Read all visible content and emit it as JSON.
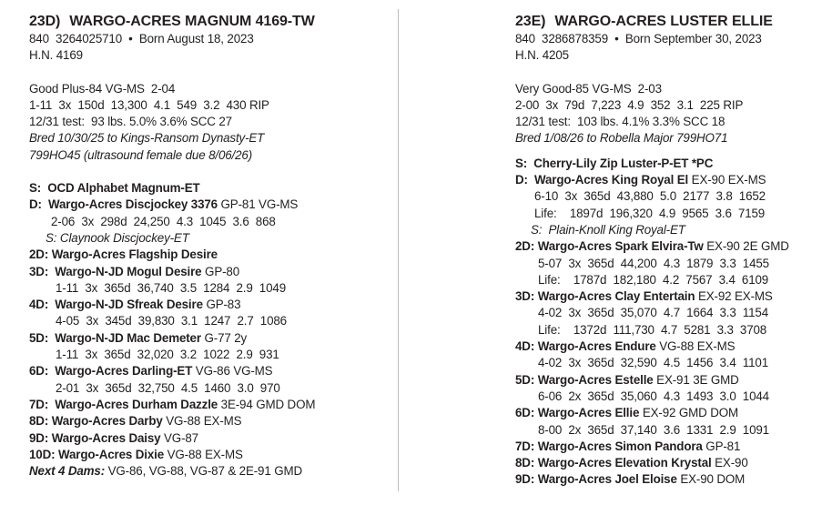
{
  "animals": [
    {
      "lot": "23D)",
      "name": "WARGO-ACRES MAGNUM 4169-TW",
      "id_line": "840  3264025710  •  Born August 18, 2023",
      "hn": "H.N. 4169",
      "record": [
        [
          {
            "t": "Good Plus-84 VG-MS  2-04"
          }
        ],
        [
          {
            "t": "1-11  3x  150d  13,300  4.1  549  3.2  430 RIP"
          }
        ],
        [
          {
            "t": "12/31 test:  93 lbs. 5.0% 3.6% SCC 27"
          }
        ],
        [
          {
            "t": "Bred 10/30/25 to Kings-Ransom Dynasty-ET",
            "s": "i"
          }
        ],
        [
          {
            "t": "799HO45 (ultrasound female due 8/06/26)",
            "s": "i"
          }
        ]
      ],
      "pedigree": [
        {
          "k": "",
          "p": [
            {
              "t": "S:  OCD Alphabet Magnum-ET",
              "s": "b"
            }
          ]
        },
        {
          "k": "",
          "p": [
            {
              "t": "D:  Wargo-Acres Discjockey 3376",
              "s": "b"
            },
            {
              "t": " GP-81 VG-MS"
            }
          ]
        },
        {
          "k": "stat",
          "p": [
            {
              "t": "2-06  3x  298d  24,250  4.3  1045  3.6  868"
            }
          ]
        },
        {
          "k": "sire",
          "p": [
            {
              "t": "S: Claynook Discjockey-ET",
              "s": "i"
            }
          ]
        },
        {
          "k": "",
          "p": [
            {
              "t": "2D: Wargo-Acres Flagship Desire",
              "s": "b"
            }
          ]
        },
        {
          "k": "",
          "p": [
            {
              "t": "3D:  Wargo-N-JD Mogul Desire",
              "s": "b"
            },
            {
              "t": " GP-80"
            }
          ]
        },
        {
          "k": "stat2",
          "p": [
            {
              "t": "1-11  3x  365d  36,740  3.5  1284  2.9  1049"
            }
          ]
        },
        {
          "k": "",
          "p": [
            {
              "t": "4D:  Wargo-N-JD Sfreak Desire",
              "s": "b"
            },
            {
              "t": " GP-83"
            }
          ]
        },
        {
          "k": "stat2",
          "p": [
            {
              "t": "4-05  3x  345d  39,830  3.1  1247  2.7  1086"
            }
          ]
        },
        {
          "k": "",
          "p": [
            {
              "t": "5D:  Wargo-N-JD Mac Demeter",
              "s": "b"
            },
            {
              "t": " G-77 2y"
            }
          ]
        },
        {
          "k": "stat2",
          "p": [
            {
              "t": "1-11  3x  365d  32,020  3.2  1022  2.9  931"
            }
          ]
        },
        {
          "k": "",
          "p": [
            {
              "t": "6D:  Wargo-Acres Darling-ET",
              "s": "b"
            },
            {
              "t": " VG-86 VG-MS"
            }
          ]
        },
        {
          "k": "stat2",
          "p": [
            {
              "t": "2-01  3x  365d  32,750  4.5  1460  3.0  970"
            }
          ]
        },
        {
          "k": "",
          "p": [
            {
              "t": "7D:  Wargo-Acres Durham Dazzle",
              "s": "b"
            },
            {
              "t": " 3E-94 GMD DOM"
            }
          ]
        },
        {
          "k": "",
          "p": [
            {
              "t": "8D: Wargo-Acres Darby",
              "s": "b"
            },
            {
              "t": " VG-88 EX-MS"
            }
          ]
        },
        {
          "k": "",
          "p": [
            {
              "t": "9D: Wargo-Acres Daisy",
              "s": "b"
            },
            {
              "t": " VG-87"
            }
          ]
        },
        {
          "k": "",
          "p": [
            {
              "t": "10D: Wargo-Acres Dixie",
              "s": "b"
            },
            {
              "t": " VG-88 EX-MS"
            }
          ]
        },
        {
          "k": "",
          "p": [
            {
              "t": "Next 4 Dams:",
              "s": "b i"
            },
            {
              "t": " VG-86, VG-88, VG-87 & 2E-91 GMD"
            }
          ]
        }
      ]
    },
    {
      "lot": "23E)",
      "name": "WARGO-ACRES LUSTER ELLIE",
      "id_line": "840  3286878359  •  Born September 30, 2023",
      "hn": "H.N. 4205",
      "record": [
        [
          {
            "t": "Very Good-85 VG-MS  2-03"
          }
        ],
        [
          {
            "t": "2-00  3x  79d  7,223  4.9  352  3.1  225 RIP"
          }
        ],
        [
          {
            "t": "12/31 test:  103 lbs. 4.1% 3.3% SCC 18"
          }
        ],
        [
          {
            "t": "Bred 1/08/26 to Robella Major 799HO71",
            "s": "i"
          }
        ]
      ],
      "pedigree": [
        {
          "k": "",
          "p": [
            {
              "t": "S:  Cherry-Lily Zip Luster-P-ET *PC",
              "s": "b"
            }
          ]
        },
        {
          "k": "",
          "p": [
            {
              "t": "D:  Wargo-Acres King Royal El",
              "s": "b"
            },
            {
              "t": " EX-90 EX-MS"
            }
          ]
        },
        {
          "k": "stat",
          "p": [
            {
              "t": "6-10  3x  365d  43,880  5.0  2177  3.8  1652"
            }
          ]
        },
        {
          "k": "stat",
          "p": [
            {
              "t": "Life:    1897d  196,320  4.9  9565  3.6  7159"
            }
          ]
        },
        {
          "k": "sire",
          "p": [
            {
              "t": "S:  Plain-Knoll King Royal-ET",
              "s": "i"
            }
          ]
        },
        {
          "k": "",
          "p": [
            {
              "t": "2D: Wargo-Acres Spark Elvira-Tw",
              "s": "b"
            },
            {
              "t": " EX-90 2E GMD"
            }
          ]
        },
        {
          "k": "stat2",
          "p": [
            {
              "t": "5-07  3x  365d  44,200  4.3  1879  3.3  1455"
            }
          ]
        },
        {
          "k": "stat2",
          "p": [
            {
              "t": "Life:    1787d  182,180  4.2  7567  3.4  6109"
            }
          ]
        },
        {
          "k": "",
          "p": [
            {
              "t": "3D: Wargo-Acres Clay Entertain",
              "s": "b"
            },
            {
              "t": " EX-92 EX-MS"
            }
          ]
        },
        {
          "k": "stat2",
          "p": [
            {
              "t": "4-02  3x  365d  35,070  4.7  1664  3.3  1154"
            }
          ]
        },
        {
          "k": "stat2",
          "p": [
            {
              "t": "Life:    1372d  111,730  4.7  5281  3.3  3708"
            }
          ]
        },
        {
          "k": "",
          "p": [
            {
              "t": "4D: Wargo-Acres Endure",
              "s": "b"
            },
            {
              "t": " VG-88 EX-MS"
            }
          ]
        },
        {
          "k": "stat2",
          "p": [
            {
              "t": "4-02  3x  365d  32,590  4.5  1456  3.4  1101"
            }
          ]
        },
        {
          "k": "",
          "p": [
            {
              "t": "5D: Wargo-Acres Estelle",
              "s": "b"
            },
            {
              "t": " EX-91 3E GMD"
            }
          ]
        },
        {
          "k": "stat2",
          "p": [
            {
              "t": "6-06  2x  365d  35,060  4.3  1493  3.0  1044"
            }
          ]
        },
        {
          "k": "",
          "p": [
            {
              "t": "6D: Wargo-Acres Ellie",
              "s": "b"
            },
            {
              "t": " EX-92 GMD DOM"
            }
          ]
        },
        {
          "k": "stat2",
          "p": [
            {
              "t": "8-00  2x  365d  37,140  3.6  1331  2.9  1091"
            }
          ]
        },
        {
          "k": "",
          "p": [
            {
              "t": "7D: Wargo-Acres Simon Pandora",
              "s": "b"
            },
            {
              "t": " GP-81"
            }
          ]
        },
        {
          "k": "",
          "p": [
            {
              "t": "8D: Wargo-Acres Elevation Krystal",
              "s": "b"
            },
            {
              "t": " EX-90"
            }
          ]
        },
        {
          "k": "",
          "p": [
            {
              "t": "9D: Wargo-Acres Joel Eloise",
              "s": "b"
            },
            {
              "t": " EX-90 DOM"
            }
          ]
        }
      ]
    }
  ]
}
